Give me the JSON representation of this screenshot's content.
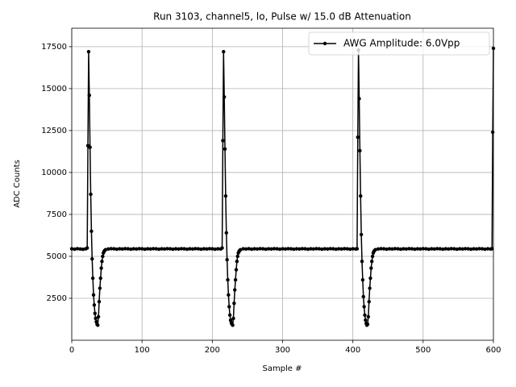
{
  "chart_data": {
    "type": "line",
    "title": "Run 3103, channel5, lo, Pulse w/ 15.0 dB Attenuation",
    "xlabel": "Sample #",
    "ylabel": "ADC Counts",
    "xlim": [
      0,
      600
    ],
    "ylim": [
      0,
      18600
    ],
    "xticks": [
      0,
      100,
      200,
      300,
      400,
      500,
      600
    ],
    "yticks": [
      2500,
      5000,
      7500,
      10000,
      12500,
      15000,
      17500
    ],
    "grid": true,
    "legend": "upper right",
    "x": [
      0,
      4,
      8,
      12,
      16,
      20,
      22,
      23,
      24,
      25,
      26,
      27,
      28,
      29,
      30,
      31,
      32,
      33,
      34,
      35,
      36,
      37,
      38,
      39,
      40,
      41,
      42,
      43,
      44,
      45,
      46,
      47,
      48,
      52,
      56,
      60,
      64,
      68,
      72,
      76,
      80,
      84,
      88,
      92,
      96,
      100,
      104,
      108,
      112,
      116,
      120,
      124,
      128,
      132,
      136,
      140,
      144,
      148,
      152,
      156,
      160,
      164,
      168,
      172,
      176,
      180,
      184,
      188,
      192,
      196,
      200,
      204,
      208,
      212,
      214,
      215,
      216,
      217,
      218,
      219,
      220,
      221,
      222,
      223,
      224,
      225,
      226,
      227,
      228,
      229,
      230,
      231,
      232,
      233,
      234,
      235,
      236,
      237,
      238,
      239,
      240,
      244,
      248,
      252,
      256,
      260,
      264,
      268,
      272,
      276,
      280,
      284,
      288,
      292,
      296,
      300,
      304,
      308,
      312,
      316,
      320,
      324,
      328,
      332,
      336,
      340,
      344,
      348,
      352,
      356,
      360,
      364,
      368,
      372,
      376,
      380,
      384,
      388,
      392,
      396,
      400,
      404,
      406,
      407,
      408,
      409,
      410,
      411,
      412,
      413,
      414,
      415,
      416,
      417,
      418,
      419,
      420,
      421,
      422,
      423,
      424,
      425,
      426,
      427,
      428,
      429,
      430,
      431,
      432,
      436,
      440,
      444,
      448,
      452,
      456,
      460,
      464,
      468,
      472,
      476,
      480,
      484,
      488,
      492,
      496,
      500,
      504,
      508,
      512,
      516,
      520,
      524,
      528,
      532,
      536,
      540,
      544,
      548,
      552,
      556,
      560,
      564,
      568,
      572,
      576,
      580,
      584,
      588,
      592,
      596,
      598,
      599,
      600
    ],
    "series": [
      {
        "name": "AWG Amplitude: 6.0Vpp",
        "color": "#000000",
        "values": [
          5450,
          5430,
          5460,
          5440,
          5420,
          5450,
          5500,
          11600,
          17200,
          14600,
          11500,
          8700,
          6500,
          4850,
          3700,
          2700,
          2100,
          1600,
          1300,
          1100,
          950,
          900,
          1400,
          2300,
          3100,
          3700,
          4300,
          4700,
          5000,
          5200,
          5300,
          5350,
          5400,
          5440,
          5460,
          5450,
          5430,
          5450,
          5440,
          5460,
          5450,
          5430,
          5450,
          5440,
          5460,
          5450,
          5430,
          5450,
          5440,
          5460,
          5450,
          5430,
          5450,
          5440,
          5460,
          5450,
          5430,
          5450,
          5440,
          5460,
          5450,
          5430,
          5450,
          5440,
          5460,
          5450,
          5430,
          5450,
          5440,
          5460,
          5450,
          5430,
          5450,
          5440,
          5500,
          11900,
          17200,
          14500,
          11400,
          8600,
          6400,
          4800,
          3600,
          2700,
          2000,
          1500,
          1200,
          1050,
          950,
          900,
          1300,
          2200,
          3000,
          3600,
          4200,
          4700,
          5000,
          5200,
          5300,
          5350,
          5400,
          5450,
          5440,
          5460,
          5430,
          5450,
          5440,
          5460,
          5450,
          5430,
          5450,
          5440,
          5460,
          5450,
          5430,
          5450,
          5440,
          5460,
          5450,
          5430,
          5450,
          5440,
          5460,
          5450,
          5430,
          5450,
          5440,
          5460,
          5450,
          5430,
          5450,
          5440,
          5460,
          5450,
          5430,
          5450,
          5440,
          5460,
          5450,
          5430,
          5450,
          5440,
          5450,
          12100,
          17300,
          14400,
          11300,
          8600,
          6300,
          4700,
          3600,
          2600,
          2000,
          1500,
          1200,
          1000,
          900,
          950,
          1400,
          2300,
          3100,
          3700,
          4300,
          4700,
          5000,
          5200,
          5300,
          5350,
          5400,
          5440,
          5460,
          5450,
          5430,
          5450,
          5440,
          5460,
          5450,
          5430,
          5450,
          5440,
          5460,
          5450,
          5430,
          5450,
          5440,
          5460,
          5450,
          5430,
          5450,
          5440,
          5460,
          5450,
          5430,
          5450,
          5440,
          5460,
          5450,
          5430,
          5450,
          5440,
          5460,
          5450,
          5430,
          5450,
          5440,
          5460,
          5450,
          5430,
          5450,
          5440,
          5450,
          12400,
          17400
        ]
      }
    ]
  }
}
